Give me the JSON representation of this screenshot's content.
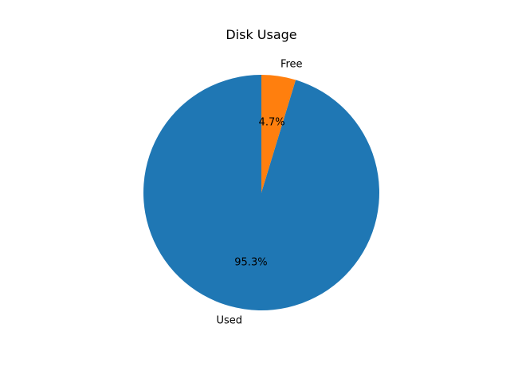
{
  "chart_data": {
    "type": "pie",
    "title": "Disk Usage",
    "categories": [
      "Used",
      "Free"
    ],
    "values": [
      95.3,
      4.7
    ],
    "value_labels": [
      "95.3%",
      "4.7%"
    ],
    "colors": [
      "#1f77b4",
      "#ff7f0e"
    ],
    "start_angle_deg": 90,
    "direction": "counterclockwise",
    "legend": "none"
  }
}
